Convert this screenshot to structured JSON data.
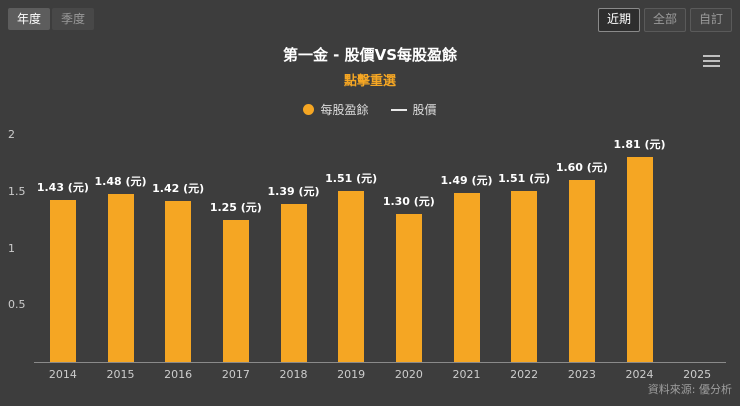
{
  "toolbar": {
    "period_buttons": [
      {
        "label": "年度",
        "active": true
      },
      {
        "label": "季度",
        "active": false
      }
    ],
    "range_buttons": [
      {
        "label": "近期",
        "active": true
      },
      {
        "label": "全部",
        "active": false
      },
      {
        "label": "自訂",
        "active": false
      }
    ]
  },
  "chart": {
    "title": "第一金 - 股價VS每股盈餘",
    "subtitle": "點擊重選",
    "legend": {
      "bar_label": "每股盈餘",
      "line_label": "股價"
    },
    "source": "資料來源: 優分析"
  },
  "chart_data": {
    "type": "bar",
    "title": "第一金 - 股價VS每股盈餘",
    "subtitle": "點擊重選",
    "categories": [
      "2014",
      "2015",
      "2016",
      "2017",
      "2018",
      "2019",
      "2020",
      "2021",
      "2022",
      "2023",
      "2024",
      "2025"
    ],
    "series": [
      {
        "name": "每股盈餘",
        "type": "bar",
        "color": "#f5a623",
        "unit": "元",
        "values": [
          1.43,
          1.48,
          1.42,
          1.25,
          1.39,
          1.51,
          1.3,
          1.49,
          1.51,
          1.6,
          1.81,
          null
        ]
      },
      {
        "name": "股價",
        "type": "line",
        "color": "#e8e8e8",
        "values": []
      }
    ],
    "data_labels": [
      "1.43 (元)",
      "1.48 (元)",
      "1.42 (元)",
      "1.25 (元)",
      "1.39 (元)",
      "1.51 (元)",
      "1.30 (元)",
      "1.49 (元)",
      "1.51 (元)",
      "1.60 (元)",
      "1.81 (元)",
      ""
    ],
    "ylim": [
      0,
      2
    ],
    "yticks": [
      0.5,
      1,
      1.5,
      2
    ],
    "grid": false,
    "legend_position": "top",
    "source": "資料來源: 優分析",
    "colors": {
      "background": "#3d3d3d",
      "bar": "#f5a623",
      "title": "#ffffff",
      "subtitle": "#f5a623"
    }
  }
}
